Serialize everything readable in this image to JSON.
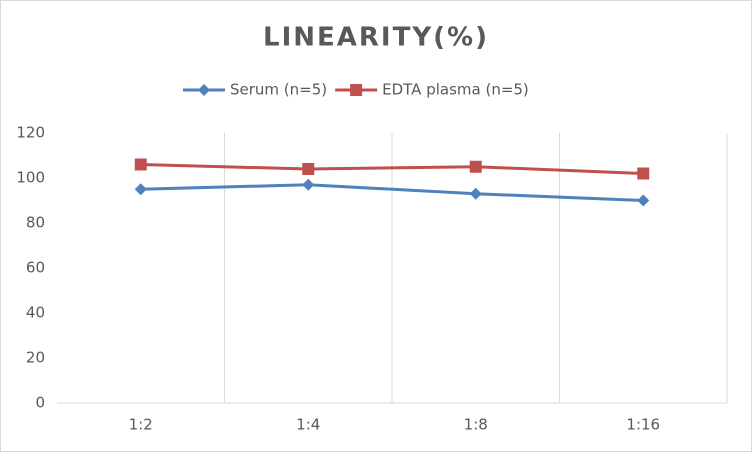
{
  "chart_data": {
    "type": "line",
    "title": "LINEARITY(%)",
    "categories": [
      "1:2",
      "1:4",
      "1:8",
      "1:16"
    ],
    "series": [
      {
        "name": "Serum (n=5)",
        "color": "#4f81bd",
        "marker": "diamond",
        "values": [
          95,
          97,
          93,
          90
        ]
      },
      {
        "name": "EDTA plasma (n=5)",
        "color": "#c0504d",
        "marker": "square",
        "values": [
          106,
          104,
          105,
          102
        ]
      }
    ],
    "ylim": [
      0,
      120
    ],
    "yticks": [
      0,
      20,
      40,
      60,
      80,
      100,
      120
    ],
    "grid": true,
    "legend": "top"
  }
}
